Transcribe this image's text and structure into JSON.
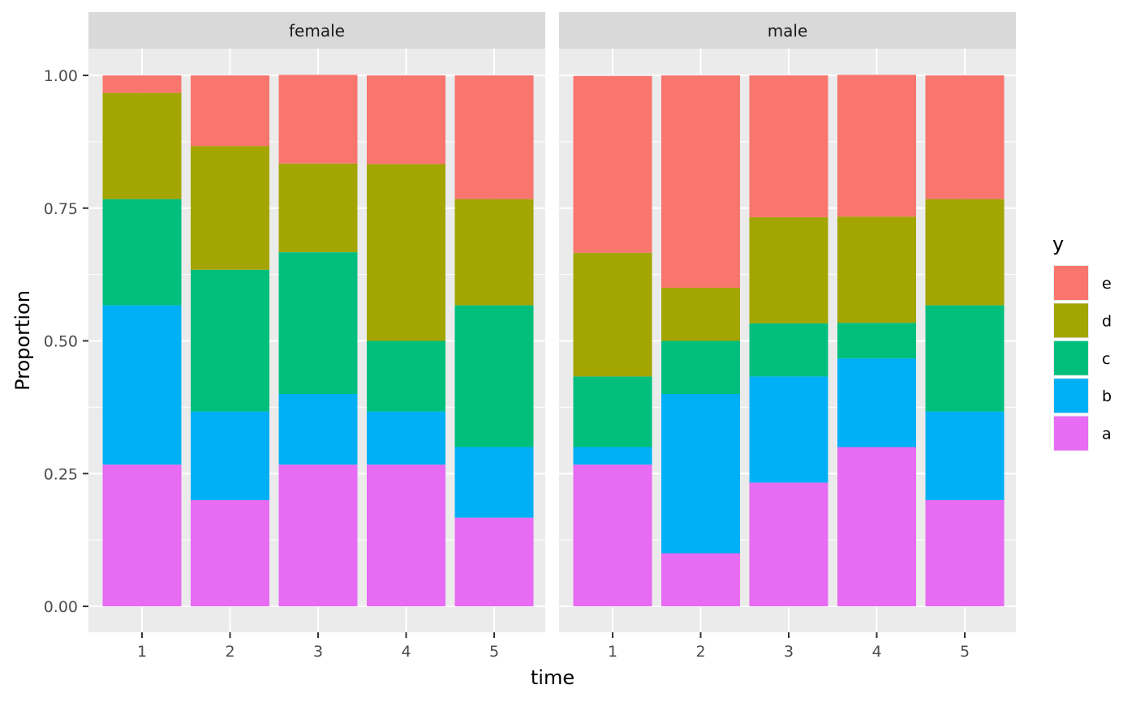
{
  "chart_data": {
    "type": "bar",
    "stacked": true,
    "facet_by": "sex",
    "xlabel": "time",
    "ylabel": "Proportion",
    "ylim": [
      0,
      1
    ],
    "y_ticks": [
      "0.00",
      "0.25",
      "0.50",
      "0.75",
      "1.00"
    ],
    "y_tick_values": [
      0,
      0.25,
      0.5,
      0.75,
      1
    ],
    "categories": [
      "1",
      "2",
      "3",
      "4",
      "5"
    ],
    "grid": true,
    "legend": {
      "title": "y",
      "position": "right",
      "entries": [
        "e",
        "d",
        "c",
        "b",
        "a"
      ]
    },
    "colors": {
      "a": "#E76BF3",
      "b": "#00B0F6",
      "c": "#00BF7D",
      "d": "#A3A500",
      "e": "#F8766D"
    },
    "facets": [
      {
        "label": "female",
        "series": [
          {
            "name": "a",
            "values": [
              0.267,
              0.2,
              0.267,
              0.267,
              0.167
            ]
          },
          {
            "name": "b",
            "values": [
              0.3,
              0.167,
              0.133,
              0.1,
              0.133
            ]
          },
          {
            "name": "c",
            "values": [
              0.2,
              0.267,
              0.267,
              0.133,
              0.267
            ]
          },
          {
            "name": "d",
            "values": [
              0.2,
              0.233,
              0.167,
              0.333,
              0.2
            ]
          },
          {
            "name": "e",
            "values": [
              0.033,
              0.133,
              0.167,
              0.167,
              0.233
            ]
          }
        ]
      },
      {
        "label": "male",
        "series": [
          {
            "name": "a",
            "values": [
              0.267,
              0.1,
              0.233,
              0.3,
              0.2
            ]
          },
          {
            "name": "b",
            "values": [
              0.033,
              0.3,
              0.2,
              0.167,
              0.167
            ]
          },
          {
            "name": "c",
            "values": [
              0.133,
              0.1,
              0.1,
              0.067,
              0.2
            ]
          },
          {
            "name": "d",
            "values": [
              0.233,
              0.1,
              0.2,
              0.2,
              0.2
            ]
          },
          {
            "name": "e",
            "values": [
              0.333,
              0.4,
              0.267,
              0.267,
              0.233
            ]
          }
        ]
      }
    ]
  }
}
